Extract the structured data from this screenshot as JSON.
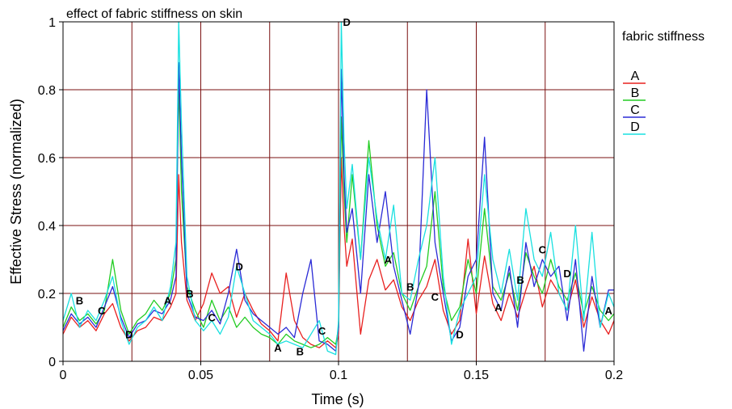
{
  "chart_data": {
    "type": "line",
    "title": "effect of fabric stiffness on skin",
    "xlabel": "Time (s)",
    "ylabel": "Effective Stress (normalized)",
    "xlim": [
      0,
      0.2
    ],
    "ylim": [
      0,
      1
    ],
    "xticks": [
      0,
      0.05,
      0.1,
      0.15,
      0.2
    ],
    "xtick_labels": [
      "0",
      "0.05",
      "0.1",
      "0.15",
      "0.2"
    ],
    "yticks": [
      0,
      0.2,
      0.4,
      0.6,
      0.8,
      1
    ],
    "ytick_labels": [
      "0",
      "0.2",
      "0.4",
      "0.6",
      "0.8",
      "1"
    ],
    "grid": true,
    "legend_title": "fabric stiffness",
    "legend_position": "right",
    "series": [
      {
        "name": "A",
        "color": "#e8201f",
        "x": [
          0,
          0.003,
          0.006,
          0.009,
          0.012,
          0.015,
          0.018,
          0.021,
          0.024,
          0.027,
          0.03,
          0.033,
          0.036,
          0.039,
          0.041,
          0.042,
          0.043,
          0.045,
          0.048,
          0.051,
          0.054,
          0.057,
          0.06,
          0.063,
          0.066,
          0.069,
          0.072,
          0.075,
          0.078,
          0.081,
          0.084,
          0.087,
          0.09,
          0.093,
          0.096,
          0.099,
          0.1,
          0.101,
          0.102,
          0.103,
          0.105,
          0.108,
          0.111,
          0.114,
          0.117,
          0.12,
          0.123,
          0.126,
          0.129,
          0.132,
          0.135,
          0.138,
          0.141,
          0.144,
          0.147,
          0.15,
          0.153,
          0.156,
          0.159,
          0.162,
          0.165,
          0.168,
          0.171,
          0.174,
          0.177,
          0.18,
          0.183,
          0.186,
          0.189,
          0.192,
          0.195,
          0.198,
          0.2
        ],
        "y": [
          0.08,
          0.13,
          0.1,
          0.12,
          0.09,
          0.14,
          0.17,
          0.1,
          0.06,
          0.09,
          0.1,
          0.13,
          0.12,
          0.16,
          0.2,
          0.55,
          0.35,
          0.18,
          0.12,
          0.17,
          0.26,
          0.2,
          0.22,
          0.13,
          0.2,
          0.15,
          0.11,
          0.09,
          0.06,
          0.26,
          0.12,
          0.07,
          0.05,
          0.04,
          0.06,
          0.04,
          0.08,
          0.6,
          0.4,
          0.28,
          0.36,
          0.08,
          0.24,
          0.3,
          0.21,
          0.24,
          0.16,
          0.12,
          0.18,
          0.22,
          0.3,
          0.15,
          0.08,
          0.12,
          0.36,
          0.14,
          0.31,
          0.17,
          0.12,
          0.2,
          0.13,
          0.21,
          0.28,
          0.16,
          0.24,
          0.2,
          0.15,
          0.24,
          0.1,
          0.19,
          0.12,
          0.08,
          0.12
        ]
      },
      {
        "name": "B",
        "color": "#22cc22",
        "x": [
          0,
          0.003,
          0.006,
          0.009,
          0.012,
          0.015,
          0.018,
          0.021,
          0.024,
          0.027,
          0.03,
          0.033,
          0.036,
          0.039,
          0.041,
          0.042,
          0.043,
          0.045,
          0.048,
          0.051,
          0.054,
          0.057,
          0.06,
          0.063,
          0.066,
          0.069,
          0.072,
          0.075,
          0.078,
          0.081,
          0.084,
          0.087,
          0.09,
          0.093,
          0.096,
          0.099,
          0.1,
          0.101,
          0.102,
          0.103,
          0.105,
          0.108,
          0.111,
          0.114,
          0.117,
          0.12,
          0.123,
          0.126,
          0.129,
          0.132,
          0.135,
          0.138,
          0.141,
          0.144,
          0.147,
          0.15,
          0.153,
          0.156,
          0.159,
          0.162,
          0.165,
          0.168,
          0.171,
          0.174,
          0.177,
          0.18,
          0.183,
          0.186,
          0.189,
          0.192,
          0.195,
          0.198,
          0.2
        ],
        "y": [
          0.1,
          0.16,
          0.12,
          0.14,
          0.11,
          0.15,
          0.3,
          0.15,
          0.08,
          0.12,
          0.14,
          0.18,
          0.15,
          0.2,
          0.3,
          0.82,
          0.5,
          0.22,
          0.15,
          0.1,
          0.18,
          0.12,
          0.16,
          0.1,
          0.13,
          0.1,
          0.08,
          0.07,
          0.05,
          0.08,
          0.06,
          0.05,
          0.04,
          0.05,
          0.07,
          0.05,
          0.1,
          0.72,
          0.5,
          0.35,
          0.55,
          0.3,
          0.65,
          0.4,
          0.28,
          0.32,
          0.2,
          0.15,
          0.22,
          0.28,
          0.5,
          0.22,
          0.12,
          0.16,
          0.3,
          0.2,
          0.45,
          0.22,
          0.18,
          0.26,
          0.15,
          0.32,
          0.25,
          0.2,
          0.3,
          0.22,
          0.18,
          0.26,
          0.14,
          0.22,
          0.15,
          0.12,
          0.14
        ]
      },
      {
        "name": "C",
        "color": "#2b2bd6",
        "x": [
          0,
          0.003,
          0.006,
          0.009,
          0.012,
          0.015,
          0.018,
          0.021,
          0.024,
          0.027,
          0.03,
          0.033,
          0.036,
          0.039,
          0.041,
          0.042,
          0.043,
          0.045,
          0.048,
          0.051,
          0.054,
          0.057,
          0.06,
          0.063,
          0.066,
          0.069,
          0.072,
          0.075,
          0.078,
          0.081,
          0.084,
          0.087,
          0.09,
          0.093,
          0.096,
          0.099,
          0.1,
          0.101,
          0.102,
          0.103,
          0.105,
          0.108,
          0.111,
          0.114,
          0.117,
          0.12,
          0.123,
          0.126,
          0.129,
          0.132,
          0.135,
          0.138,
          0.141,
          0.144,
          0.147,
          0.15,
          0.153,
          0.156,
          0.159,
          0.162,
          0.165,
          0.168,
          0.171,
          0.174,
          0.177,
          0.18,
          0.183,
          0.186,
          0.189,
          0.192,
          0.195,
          0.198,
          0.2
        ],
        "y": [
          0.09,
          0.14,
          0.11,
          0.13,
          0.1,
          0.16,
          0.22,
          0.13,
          0.07,
          0.11,
          0.12,
          0.15,
          0.14,
          0.18,
          0.25,
          0.88,
          0.6,
          0.2,
          0.13,
          0.12,
          0.15,
          0.11,
          0.2,
          0.33,
          0.18,
          0.14,
          0.12,
          0.1,
          0.08,
          0.1,
          0.07,
          0.2,
          0.3,
          0.06,
          0.05,
          0.03,
          0.1,
          0.86,
          0.55,
          0.38,
          0.45,
          0.2,
          0.55,
          0.35,
          0.5,
          0.28,
          0.18,
          0.08,
          0.22,
          0.8,
          0.35,
          0.2,
          0.06,
          0.1,
          0.25,
          0.3,
          0.66,
          0.2,
          0.15,
          0.28,
          0.1,
          0.35,
          0.22,
          0.3,
          0.25,
          0.28,
          0.12,
          0.3,
          0.03,
          0.25,
          0.1,
          0.21,
          0.21
        ]
      },
      {
        "name": "D",
        "color": "#19e0e0",
        "x": [
          0,
          0.003,
          0.006,
          0.009,
          0.012,
          0.015,
          0.018,
          0.021,
          0.024,
          0.027,
          0.03,
          0.033,
          0.036,
          0.039,
          0.041,
          0.042,
          0.043,
          0.045,
          0.048,
          0.051,
          0.054,
          0.057,
          0.06,
          0.063,
          0.066,
          0.069,
          0.072,
          0.075,
          0.078,
          0.081,
          0.084,
          0.087,
          0.09,
          0.093,
          0.096,
          0.099,
          0.1,
          0.101,
          0.102,
          0.103,
          0.105,
          0.108,
          0.111,
          0.114,
          0.117,
          0.12,
          0.123,
          0.126,
          0.129,
          0.132,
          0.135,
          0.138,
          0.141,
          0.144,
          0.147,
          0.15,
          0.153,
          0.156,
          0.159,
          0.162,
          0.165,
          0.168,
          0.171,
          0.174,
          0.177,
          0.18,
          0.183,
          0.186,
          0.189,
          0.192,
          0.195,
          0.198,
          0.2
        ],
        "y": [
          0.12,
          0.2,
          0.1,
          0.15,
          0.12,
          0.18,
          0.25,
          0.12,
          0.05,
          0.1,
          0.12,
          0.16,
          0.12,
          0.22,
          0.35,
          1.0,
          0.7,
          0.25,
          0.12,
          0.09,
          0.12,
          0.08,
          0.13,
          0.28,
          0.2,
          0.12,
          0.1,
          0.08,
          0.05,
          0.06,
          0.05,
          0.04,
          0.08,
          0.12,
          0.03,
          0.02,
          0.12,
          1.0,
          0.65,
          0.45,
          0.58,
          0.3,
          0.6,
          0.42,
          0.3,
          0.46,
          0.2,
          0.18,
          0.3,
          0.4,
          0.6,
          0.25,
          0.05,
          0.15,
          0.2,
          0.25,
          0.55,
          0.3,
          0.2,
          0.33,
          0.18,
          0.45,
          0.3,
          0.25,
          0.38,
          0.2,
          0.15,
          0.4,
          0.12,
          0.38,
          0.1,
          0.2,
          0.16
        ]
      }
    ],
    "annotations": [
      {
        "text": "B",
        "x": 0.006,
        "y": 0.18
      },
      {
        "text": "C",
        "x": 0.014,
        "y": 0.15
      },
      {
        "text": "D",
        "x": 0.024,
        "y": 0.08
      },
      {
        "text": "A",
        "x": 0.038,
        "y": 0.18
      },
      {
        "text": "B",
        "x": 0.046,
        "y": 0.2
      },
      {
        "text": "C",
        "x": 0.054,
        "y": 0.13
      },
      {
        "text": "D",
        "x": 0.064,
        "y": 0.28
      },
      {
        "text": "A",
        "x": 0.078,
        "y": 0.04
      },
      {
        "text": "B",
        "x": 0.086,
        "y": 0.03
      },
      {
        "text": "C",
        "x": 0.094,
        "y": 0.09
      },
      {
        "text": "D",
        "x": 0.103,
        "y": 1.0
      },
      {
        "text": "A",
        "x": 0.118,
        "y": 0.3
      },
      {
        "text": "B",
        "x": 0.126,
        "y": 0.22
      },
      {
        "text": "C",
        "x": 0.135,
        "y": 0.19
      },
      {
        "text": "D",
        "x": 0.144,
        "y": 0.08
      },
      {
        "text": "A",
        "x": 0.158,
        "y": 0.16
      },
      {
        "text": "B",
        "x": 0.166,
        "y": 0.24
      },
      {
        "text": "C",
        "x": 0.174,
        "y": 0.33
      },
      {
        "text": "D",
        "x": 0.183,
        "y": 0.26
      },
      {
        "text": "A",
        "x": 0.198,
        "y": 0.15
      }
    ]
  }
}
